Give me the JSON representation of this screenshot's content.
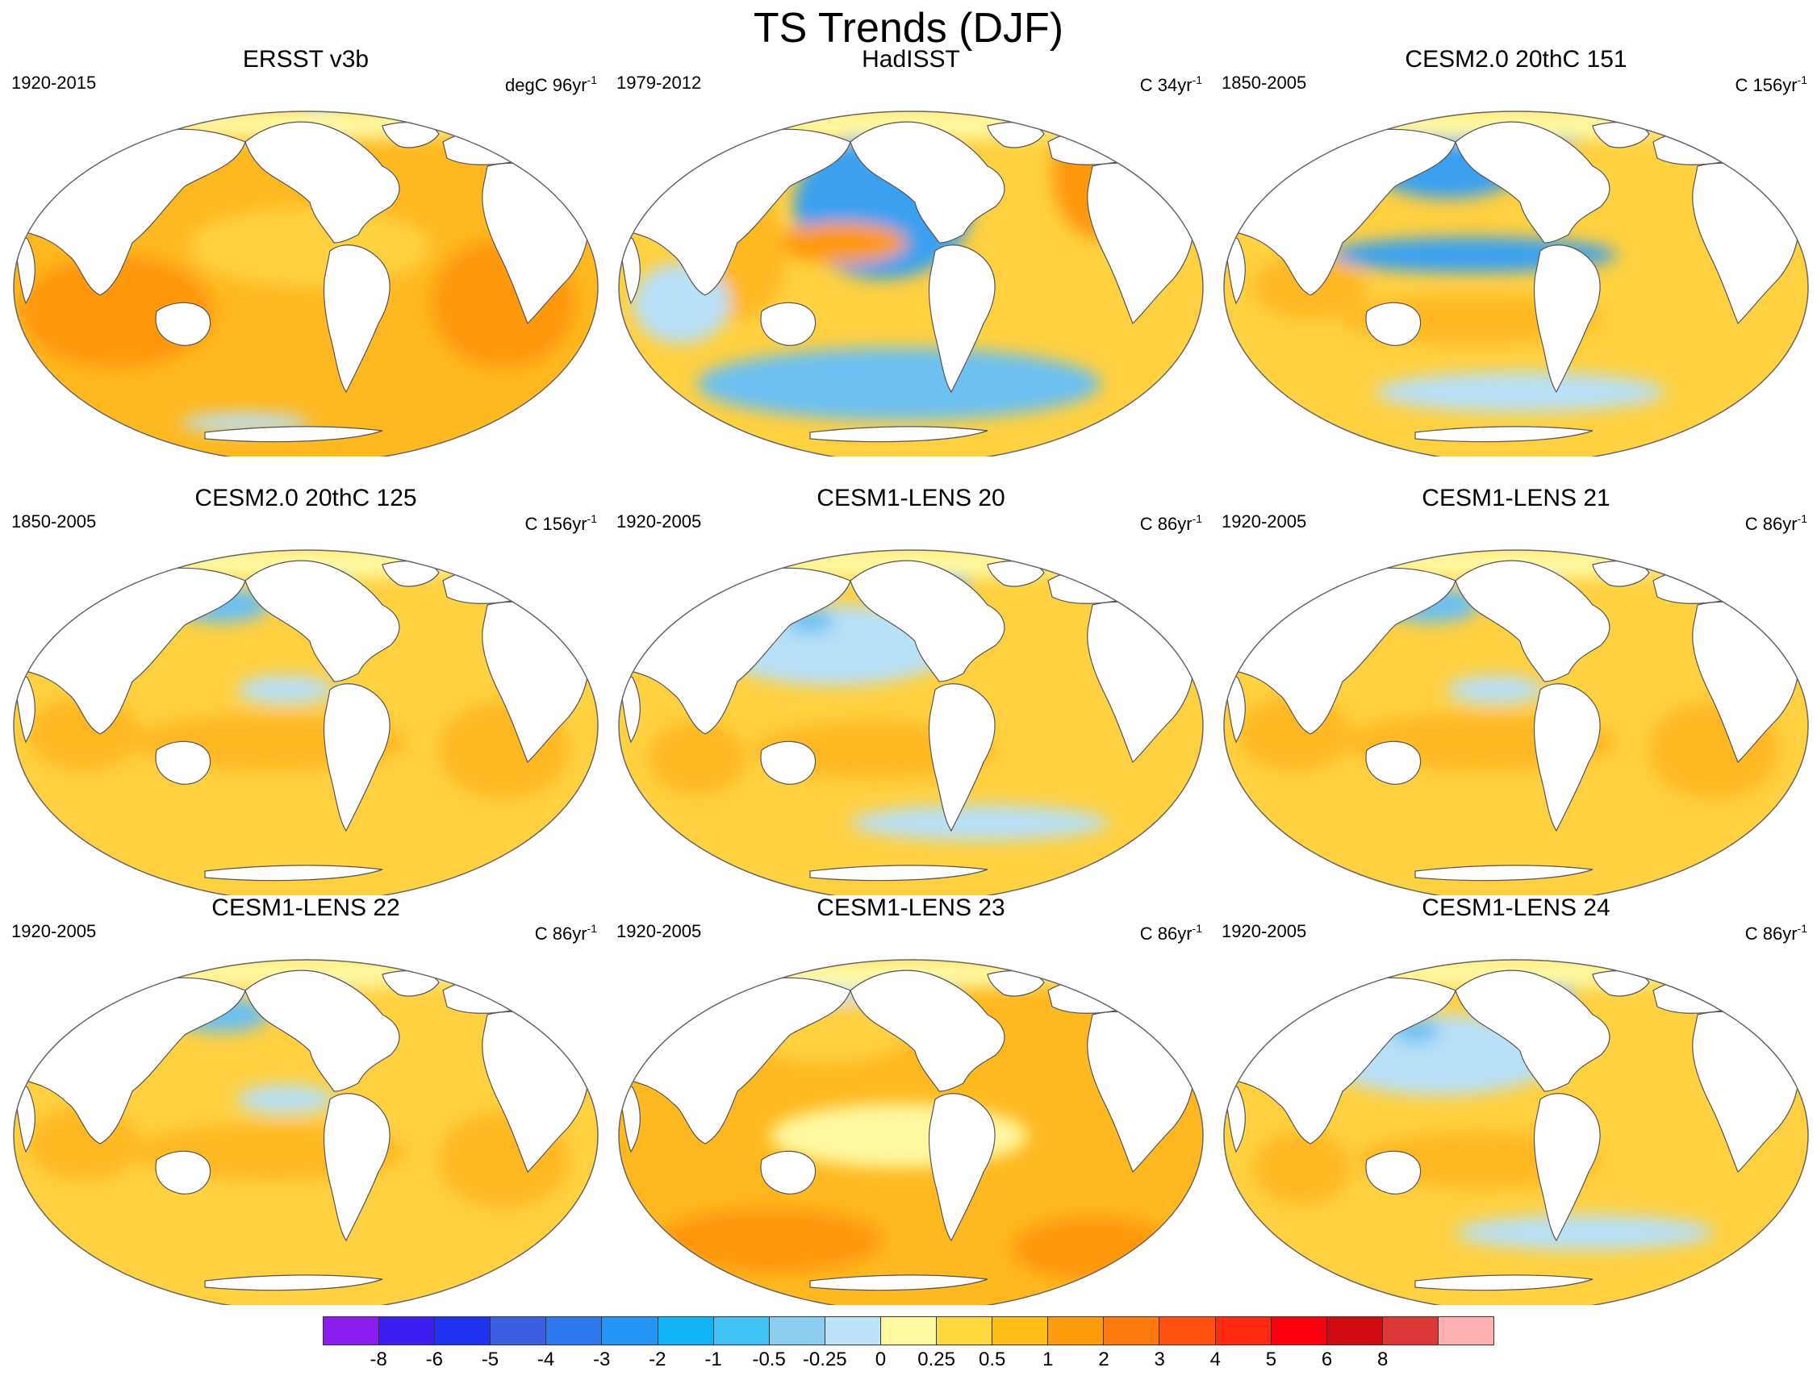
{
  "title": "TS Trends (DJF)",
  "colors": {
    "neg_strong": "#3aa0f0",
    "neg_med": "#6cc0f2",
    "neg_weak": "#b8e0f8",
    "pale": "#fff8a0",
    "pos_weak": "#ffd040",
    "pos_med": "#ffb820",
    "pos_strong": "#ff9810",
    "hot": "#ff7010",
    "land": "#ffffff",
    "coast": "#555555"
  },
  "panels": [
    {
      "title": "ERSST v3b",
      "period": "1920-2015",
      "units": "degC 96yr",
      "units_exp": "-1",
      "scheme": "warm"
    },
    {
      "title": "HadISST",
      "period": "1979-2012",
      "units": "C 34yr",
      "units_exp": "-1",
      "scheme": "cool"
    },
    {
      "title": "CESM2.0 20thC 151",
      "period": "1850-2005",
      "units": "C 156yr",
      "units_exp": "-1",
      "scheme": "band"
    },
    {
      "title": "CESM2.0 20thC 125",
      "period": "1850-2005",
      "units": "C 156yr",
      "units_exp": "-1",
      "scheme": "mixed"
    },
    {
      "title": "CESM1-LENS 20",
      "period": "1920-2005",
      "units": "C 86yr",
      "units_exp": "-1",
      "scheme": "mixed2"
    },
    {
      "title": "CESM1-LENS 21",
      "period": "1920-2005",
      "units": "C 86yr",
      "units_exp": "-1",
      "scheme": "mixed"
    },
    {
      "title": "CESM1-LENS 22",
      "period": "1920-2005",
      "units": "C 86yr",
      "units_exp": "-1",
      "scheme": "mixed"
    },
    {
      "title": "CESM1-LENS 23",
      "period": "1920-2005",
      "units": "C 86yr",
      "units_exp": "-1",
      "scheme": "warm2"
    },
    {
      "title": "CESM1-LENS 24",
      "period": "1920-2005",
      "units": "C 86yr",
      "units_exp": "-1",
      "scheme": "mixed2"
    }
  ],
  "colorbar": {
    "colors": [
      "#8b1cf0",
      "#3c1ef0",
      "#1e32f0",
      "#3c5ee0",
      "#2e78f0",
      "#2494f5",
      "#10b4f5",
      "#40c2f5",
      "#8ccdf0",
      "#bde3f8",
      "#fff8a0",
      "#ffd83c",
      "#ffbc14",
      "#ff9c0c",
      "#ff7a0c",
      "#ff5010",
      "#ff2a10",
      "#ff0010",
      "#d00a10",
      "#dd3838",
      "#ffb0b0"
    ],
    "labels": [
      "-8",
      "-6",
      "-5",
      "-4",
      "-3",
      "-2",
      "-1",
      "-0.5",
      "-0.25",
      "0",
      "0.25",
      "0.5",
      "1",
      "2",
      "3",
      "4",
      "5",
      "6",
      "8"
    ]
  }
}
